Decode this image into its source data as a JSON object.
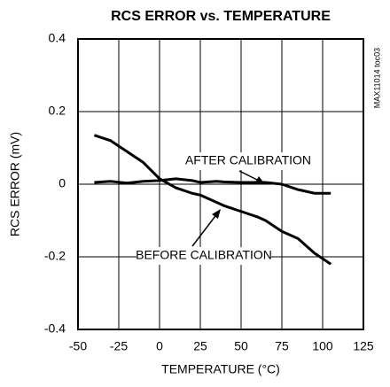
{
  "chart_data": {
    "type": "line",
    "title": "RCS ERROR vs. TEMPERATURE",
    "x_label": "TEMPERATURE (°C)",
    "y_label": "RCS ERROR (mV)",
    "side_label": "MAX11014 toc03",
    "annotations": [
      "AFTER CALIBRATION",
      "BEFORE CALIBRATION"
    ],
    "x": [
      -40,
      -30,
      -20,
      -10,
      0,
      10,
      20,
      25,
      35,
      40,
      50,
      60,
      65,
      75,
      85,
      95,
      105
    ],
    "series": [
      {
        "name": "AFTER CALIBRATION",
        "color": "#000000",
        "values": [
          0.005,
          0.008,
          0.003,
          0.008,
          0.01,
          0.015,
          0.01,
          0.005,
          0.008,
          0.006,
          0.005,
          0.005,
          0.005,
          0,
          -0.015,
          -0.025,
          -0.025
        ]
      },
      {
        "name": "BEFORE CALIBRATION",
        "color": "#000000",
        "values": [
          0.135,
          0.12,
          0.09,
          0.06,
          0.015,
          -0.01,
          -0.025,
          -0.03,
          -0.05,
          -0.06,
          -0.075,
          -0.09,
          -0.1,
          -0.13,
          -0.15,
          -0.19,
          -0.22
        ]
      }
    ],
    "xlim": [
      -50,
      125
    ],
    "xticks": [
      -50,
      -25,
      0,
      25,
      50,
      75,
      100,
      125
    ],
    "ylim": [
      -0.4,
      0.4
    ],
    "yticks": [
      -0.4,
      -0.2,
      0,
      0.2,
      0.4
    ],
    "grid": true
  }
}
